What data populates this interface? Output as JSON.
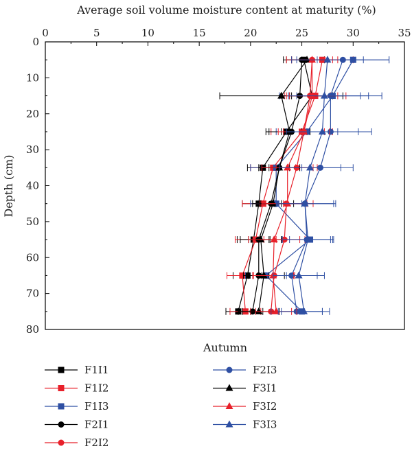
{
  "chart_data": {
    "type": "line",
    "orientation": "profile",
    "title": "",
    "xlabel": "Average soil volume moisture content at maturity (%)",
    "ylabel": "Depth (cm)",
    "caption": "Autumn",
    "xlim": [
      0,
      35
    ],
    "ylim": [
      80,
      0
    ],
    "x_axis_position": "top",
    "xticks": [
      0,
      5,
      10,
      15,
      20,
      25,
      30,
      35
    ],
    "yticks": [
      0,
      10,
      20,
      30,
      40,
      50,
      60,
      70,
      80
    ],
    "grid": false,
    "legend_position": "bottom",
    "depths": [
      5,
      15,
      25,
      35,
      45,
      55,
      65,
      75
    ],
    "series": [
      {
        "name": "F1I1",
        "color": "#000000",
        "marker": "square",
        "values": [
          25.2,
          26.0,
          23.5,
          21.2,
          20.8,
          20.3,
          19.7,
          18.8
        ],
        "errors": [
          2.0,
          2.0,
          2.0,
          1.5,
          1.6,
          1.6,
          1.4,
          1.2
        ]
      },
      {
        "name": "F1I2",
        "color": "#e8202a",
        "marker": "square",
        "values": [
          27.0,
          26.3,
          25.0,
          22.2,
          21.2,
          20.5,
          19.2,
          19.5
        ],
        "errors": [
          3.0,
          3.0,
          3.0,
          2.2,
          2.0,
          2.0,
          1.5,
          1.5
        ]
      },
      {
        "name": "F1I3",
        "color": "#2e4fa3",
        "marker": "square",
        "values": [
          30.0,
          28.0,
          25.5,
          22.5,
          22.5,
          25.8,
          21.5,
          25.0
        ],
        "errors": [
          3.5,
          3.5,
          3.0,
          2.5,
          2.5,
          2.0,
          2.0,
          2.0
        ]
      },
      {
        "name": "F2I1",
        "color": "#000000",
        "marker": "circle",
        "values": [
          25.0,
          24.8,
          24.0,
          22.8,
          22.0,
          20.8,
          20.8,
          20.2
        ],
        "errors": [
          1.0,
          1.0,
          1.0,
          1.0,
          1.0,
          1.0,
          1.0,
          1.0
        ]
      },
      {
        "name": "F2I2",
        "color": "#e8202a",
        "marker": "circle",
        "values": [
          26.0,
          25.8,
          25.2,
          24.5,
          23.5,
          23.3,
          22.3,
          22.0
        ],
        "errors": [
          2.0,
          2.0,
          2.0,
          2.0,
          2.0,
          2.0,
          2.0,
          2.0
        ]
      },
      {
        "name": "F2I3",
        "color": "#2e4fa3",
        "marker": "circle",
        "values": [
          29.0,
          27.8,
          27.8,
          26.8,
          25.3,
          25.5,
          24.0,
          24.5
        ],
        "errors": [
          4.5,
          5.0,
          4.0,
          3.2,
          3.0,
          2.5,
          2.5,
          2.5
        ]
      },
      {
        "name": "F3I1",
        "color": "#000000",
        "marker": "triangle",
        "values": [
          25.5,
          23.0,
          23.8,
          22.8,
          22.2,
          21.0,
          21.3,
          20.8
        ],
        "errors": [
          2.0,
          6.0,
          2.0,
          2.0,
          2.0,
          2.0,
          2.0,
          2.0
        ]
      },
      {
        "name": "F3I2",
        "color": "#e8202a",
        "marker": "triangle",
        "values": [
          26.0,
          26.0,
          25.2,
          23.6,
          23.6,
          22.3,
          22.2,
          22.5
        ],
        "errors": [
          2.5,
          2.5,
          2.5,
          2.5,
          2.5,
          2.5,
          2.0,
          2.0
        ]
      },
      {
        "name": "F3I3",
        "color": "#2e4fa3",
        "marker": "triangle",
        "values": [
          27.5,
          27.2,
          27.0,
          25.8,
          25.3,
          25.6,
          24.7,
          25.2
        ],
        "errors": [
          3.5,
          3.5,
          3.5,
          3.0,
          2.8,
          2.5,
          2.5,
          2.5
        ]
      }
    ]
  }
}
